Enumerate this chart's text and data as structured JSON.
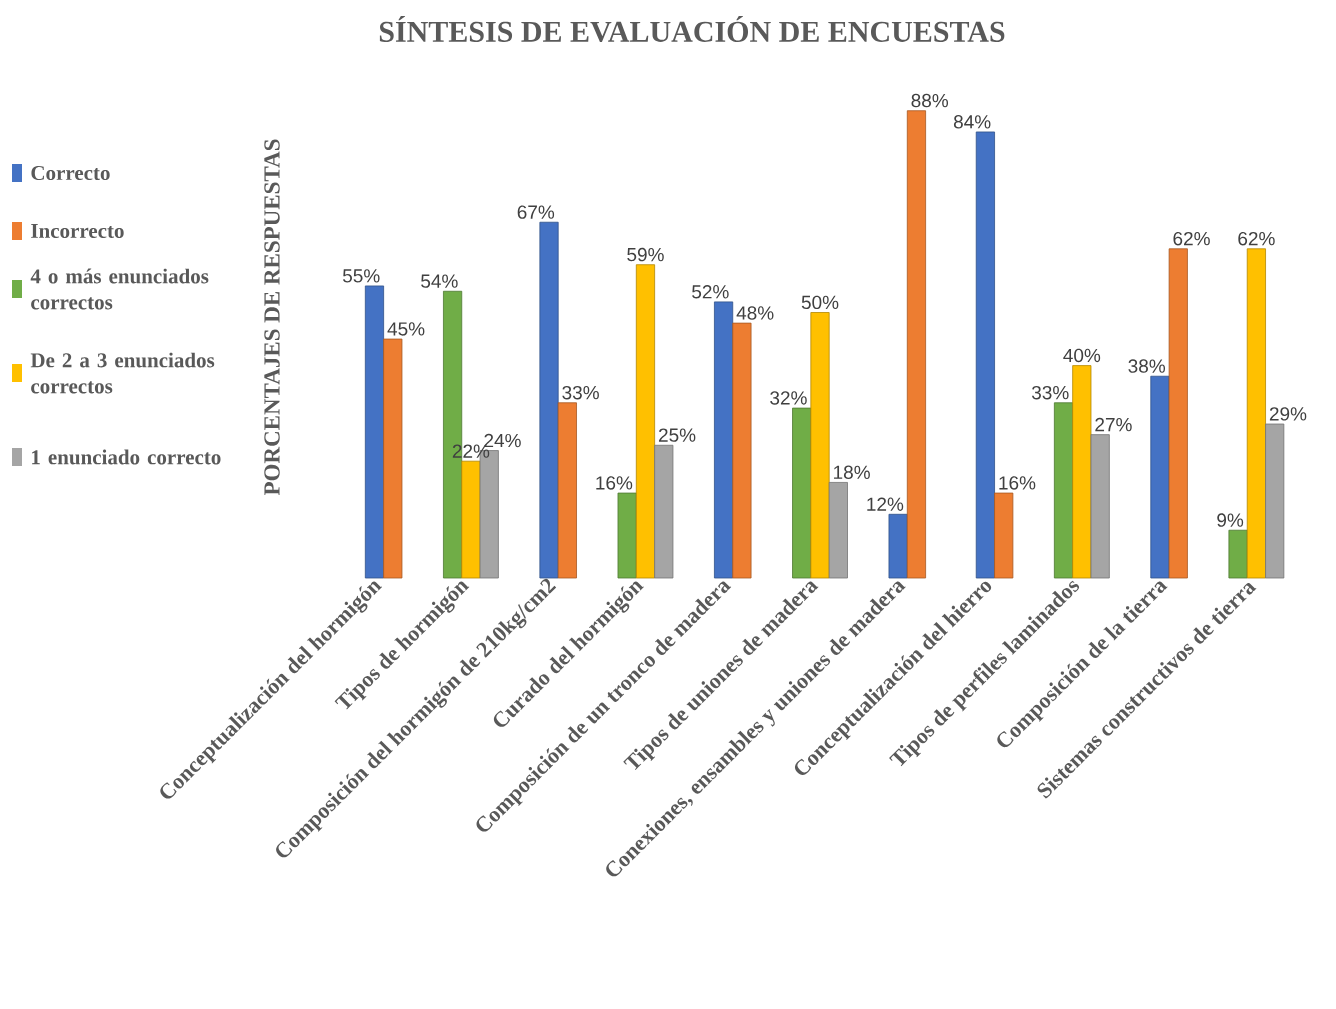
{
  "chart_data": {
    "type": "bar",
    "title": "SÍNTESIS DE EVALUACIÓN DE ENCUESTAS",
    "ylabel": "PORCENTAJES DE RESPUESTAS",
    "categories": [
      "Conceptualización del hormigón",
      "Tipos de hormigón",
      "Composición del hormigón de 210kg/cm2",
      "Curado del hormigón",
      "Composición de un tronco de madera",
      "Tipos de uniones de madera",
      "Conexiones, ensambles y uniones de madera",
      "Conceptualización del hierro",
      "Tipos de perfiles laminados",
      "Composición de la tierra",
      "Sistemas constructivos de tierra"
    ],
    "series": [
      {
        "name": "Correcto",
        "color": "#4472c4",
        "values": [
          55,
          null,
          67,
          null,
          52,
          null,
          12,
          84,
          null,
          38,
          null
        ],
        "value_labels": [
          "55%",
          null,
          "67%",
          null,
          "52%",
          null,
          "12%",
          "84%",
          null,
          "38%",
          null
        ]
      },
      {
        "name": "Incorrecto",
        "color": "#ed7d31",
        "values": [
          45,
          null,
          33,
          null,
          48,
          null,
          88,
          16,
          null,
          62,
          null
        ],
        "value_labels": [
          "45%",
          null,
          "33%",
          null,
          "48%",
          null,
          "88%",
          "16%",
          null,
          "62%",
          null
        ]
      },
      {
        "name": "4 o más enunciados correctos",
        "color": "#70ad47",
        "values": [
          null,
          54,
          null,
          16,
          null,
          32,
          null,
          null,
          33,
          null,
          9
        ],
        "value_labels": [
          null,
          "54%",
          null,
          "16%",
          null,
          "32%",
          null,
          null,
          "33%",
          null,
          "9%"
        ]
      },
      {
        "name": "De 2 a 3 enunciados correctos",
        "color": "#ffc000",
        "values": [
          null,
          22,
          null,
          59,
          null,
          50,
          null,
          null,
          40,
          null,
          62
        ],
        "value_labels": [
          null,
          "22%",
          null,
          "59%",
          null,
          "50%",
          null,
          null,
          "40%",
          null,
          "62%"
        ]
      },
      {
        "name": "1 enunciado correcto",
        "color": "#a5a5a5",
        "values": [
          null,
          24,
          null,
          25,
          null,
          18,
          null,
          null,
          27,
          null,
          29
        ],
        "value_labels": [
          null,
          "24%",
          null,
          "25%",
          null,
          "18%",
          null,
          null,
          "27%",
          null,
          "29%"
        ]
      }
    ],
    "legend": "left",
    "tick_labels": "x"
  }
}
